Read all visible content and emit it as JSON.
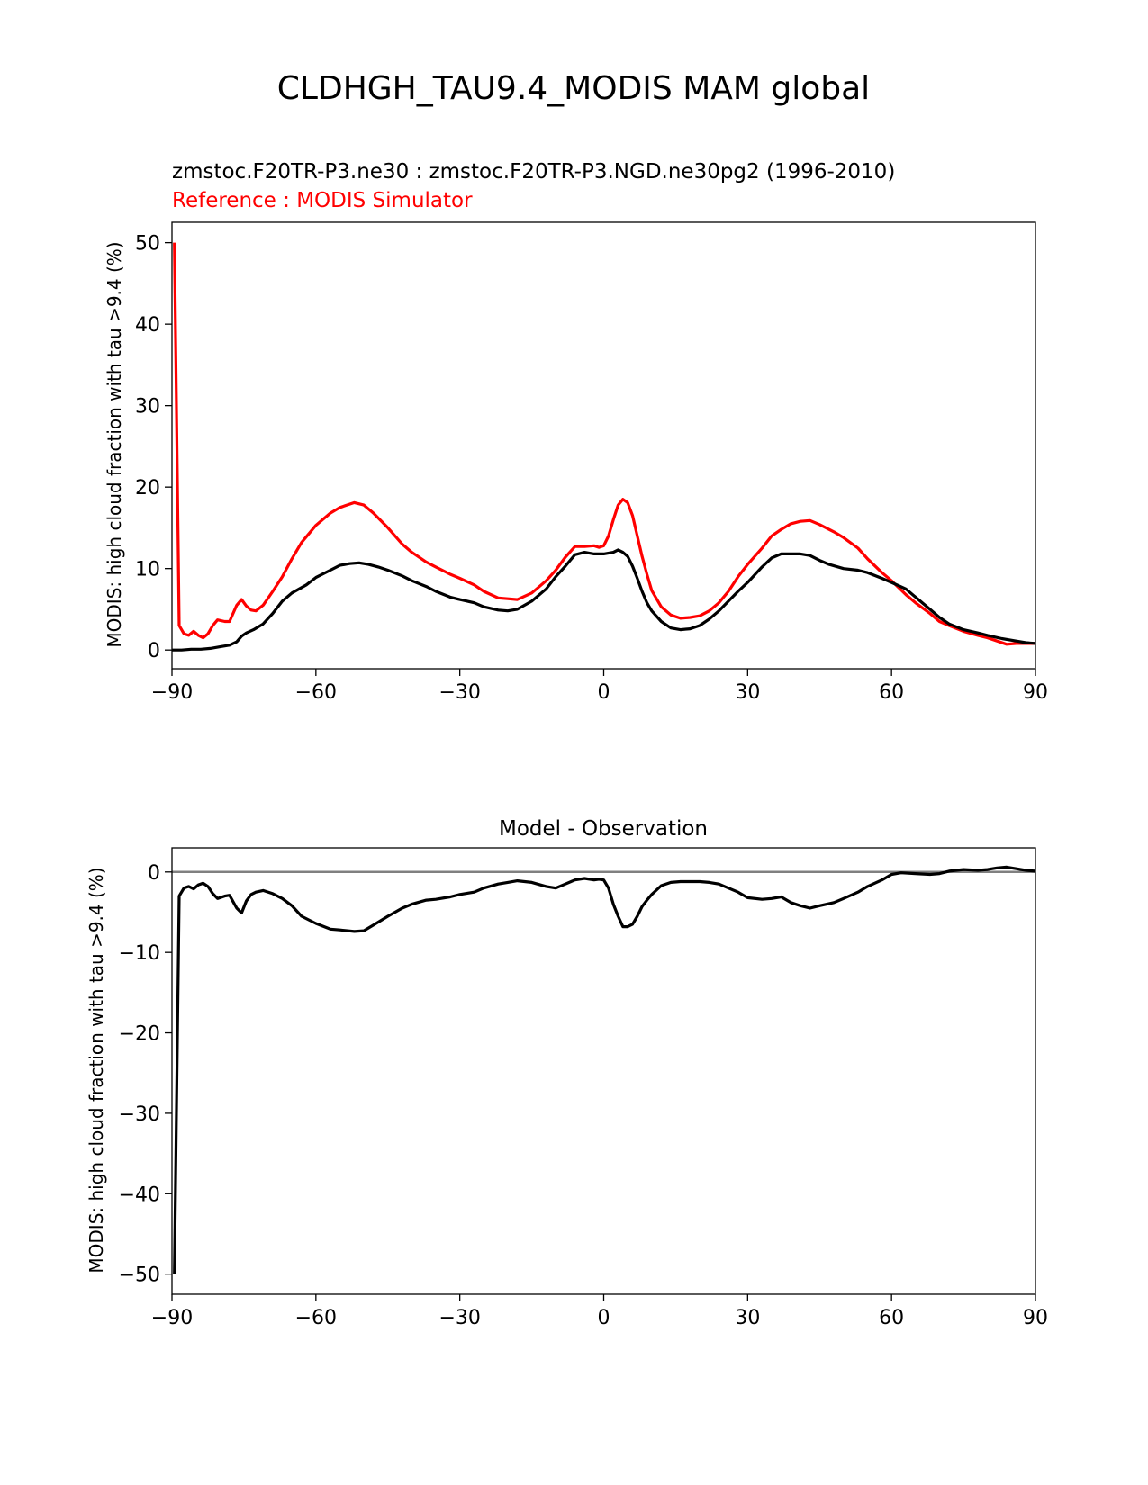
{
  "figure": {
    "title": "CLDHGH_TAU9.4_MODIS MAM global"
  },
  "chart_data": [
    {
      "type": "line",
      "title": "zmstoc.F20TR-P3.ne30 : zmstoc.F20TR-P3.NGD.ne30pg2 (1996-2010)",
      "subtitle": "Reference : MODIS Simulator",
      "subtitle_color": "#ff0000",
      "xlabel": "",
      "ylabel": "MODIS: high cloud fraction with tau >9.4 (%)",
      "xlim": [
        -90,
        90
      ],
      "ylim": [
        -2.3,
        52.5
      ],
      "xticks": [
        -90,
        -60,
        -30,
        0,
        30,
        60,
        90
      ],
      "xtick_labels": [
        "−90",
        "−60",
        "−30",
        "0",
        "30",
        "60",
        "90"
      ],
      "yticks": [
        0,
        10,
        20,
        30,
        40,
        50
      ],
      "ytick_labels": [
        "0",
        "10",
        "20",
        "30",
        "40",
        "50"
      ],
      "grid": false,
      "series": [
        {
          "color": "#ff0000",
          "x": [
            -89.5,
            -88.5,
            -87.5,
            -86.5,
            -85.5,
            -84.5,
            -83.5,
            -82.5,
            -81.5,
            -80.5,
            -79,
            -78,
            -76.5,
            -75.5,
            -74.5,
            -73.5,
            -72.5,
            -71,
            -69,
            -67,
            -65,
            -63,
            -60,
            -57,
            -55,
            -52,
            -50,
            -48,
            -45,
            -42,
            -40,
            -37,
            -35,
            -32,
            -30,
            -27,
            -25,
            -22,
            -20,
            -18,
            -15,
            -12,
            -10,
            -8,
            -6,
            -4,
            -2,
            -1,
            0,
            1,
            2,
            3,
            4,
            5,
            6,
            7,
            8,
            9,
            10,
            12,
            14,
            16,
            18,
            20,
            22,
            24,
            26,
            28,
            30,
            33,
            35,
            37,
            39,
            41,
            43,
            45,
            48,
            50,
            53,
            55,
            58,
            60,
            63,
            65,
            68,
            70,
            72,
            75,
            78,
            80,
            82,
            84,
            86,
            88,
            90
          ],
          "y": [
            50,
            3,
            2,
            1.8,
            2.3,
            1.8,
            1.5,
            2,
            3,
            3.7,
            3.5,
            3.5,
            5.5,
            6.2,
            5.4,
            4.9,
            4.8,
            5.5,
            7.2,
            9,
            11.2,
            13.2,
            15.3,
            16.8,
            17.5,
            18.1,
            17.8,
            16.8,
            15,
            13,
            12,
            10.8,
            10.2,
            9.3,
            8.8,
            8,
            7.2,
            6.4,
            6.3,
            6.2,
            7,
            8.5,
            9.8,
            11.4,
            12.7,
            12.7,
            12.8,
            12.6,
            12.8,
            14,
            16,
            17.8,
            18.5,
            18.1,
            16.5,
            14,
            11.5,
            9.3,
            7.3,
            5.3,
            4.3,
            3.9,
            4,
            4.2,
            4.8,
            5.8,
            7.2,
            9,
            10.5,
            12.5,
            14,
            14.8,
            15.5,
            15.8,
            15.9,
            15.4,
            14.5,
            13.8,
            12.5,
            11.2,
            9.5,
            8.5,
            6.8,
            5.8,
            4.5,
            3.5,
            3,
            2.3,
            1.8,
            1.5,
            1.1,
            0.7,
            0.8,
            0.8,
            0.8
          ]
        },
        {
          "color": "#000000",
          "x": [
            -90,
            -88,
            -86,
            -84,
            -82,
            -80,
            -78,
            -76.5,
            -75.5,
            -74.5,
            -73,
            -71,
            -69,
            -67,
            -65,
            -62,
            -60,
            -57,
            -55,
            -53,
            -51,
            -49,
            -47,
            -45,
            -42,
            -40,
            -37,
            -35,
            -32,
            -30,
            -27,
            -25,
            -22,
            -20,
            -18,
            -15,
            -12,
            -10,
            -8,
            -6,
            -4,
            -2,
            0,
            2,
            3,
            4,
            5,
            6,
            7,
            8,
            9,
            10,
            12,
            14,
            16,
            18,
            20,
            22,
            24,
            26,
            28,
            30,
            33,
            35,
            37,
            39,
            41,
            43,
            45,
            47,
            50,
            53,
            55,
            58,
            60,
            63,
            65,
            68,
            70,
            72,
            75,
            78,
            80,
            83,
            86,
            88,
            90
          ],
          "y": [
            0,
            0,
            0.1,
            0.1,
            0.2,
            0.4,
            0.6,
            1,
            1.7,
            2.1,
            2.5,
            3.2,
            4.5,
            6,
            7,
            8,
            8.9,
            9.8,
            10.4,
            10.6,
            10.7,
            10.5,
            10.2,
            9.8,
            9.1,
            8.5,
            7.8,
            7.2,
            6.5,
            6.2,
            5.8,
            5.3,
            4.9,
            4.8,
            5,
            6,
            7.5,
            9,
            10.3,
            11.7,
            12,
            11.8,
            11.8,
            12,
            12.3,
            12,
            11.5,
            10.3,
            8.8,
            7.2,
            5.8,
            4.8,
            3.5,
            2.7,
            2.5,
            2.6,
            3,
            3.8,
            4.8,
            6,
            7.2,
            8.3,
            10.2,
            11.3,
            11.8,
            11.8,
            11.8,
            11.6,
            11,
            10.5,
            10,
            9.8,
            9.5,
            8.8,
            8.3,
            7.5,
            6.5,
            5,
            4,
            3.2,
            2.5,
            2.1,
            1.8,
            1.4,
            1.1,
            0.9,
            0.8
          ]
        }
      ]
    },
    {
      "type": "line",
      "title": "Model - Observation",
      "xlabel": "",
      "ylabel": "MODIS: high cloud fraction with tau >9.4 (%)",
      "xlim": [
        -90,
        90
      ],
      "ylim": [
        -52.5,
        3
      ],
      "xticks": [
        -90,
        -60,
        -30,
        0,
        30,
        60,
        90
      ],
      "xtick_labels": [
        "−90",
        "−60",
        "−30",
        "0",
        "30",
        "60",
        "90"
      ],
      "yticks": [
        0,
        -10,
        -20,
        -30,
        -40,
        -50
      ],
      "ytick_labels": [
        "0",
        "−10",
        "−20",
        "−30",
        "−40",
        "−50"
      ],
      "grid": false,
      "zero_line_color": "#808080",
      "series": [
        {
          "color": "#000000",
          "x": [
            -89.5,
            -88.5,
            -87.5,
            -86.5,
            -85.5,
            -84.5,
            -83.5,
            -82.5,
            -81.5,
            -80.5,
            -79,
            -78,
            -76.5,
            -75.5,
            -74.5,
            -73.5,
            -72.5,
            -71,
            -69,
            -67,
            -65,
            -63,
            -60,
            -57,
            -55,
            -52,
            -50,
            -48,
            -45,
            -42,
            -40,
            -37,
            -35,
            -32,
            -30,
            -27,
            -25,
            -22,
            -20,
            -18,
            -15,
            -12,
            -10,
            -8,
            -6,
            -4,
            -2,
            -1,
            0,
            1,
            2,
            3,
            4,
            5,
            6,
            7,
            8,
            9,
            10,
            12,
            14,
            16,
            18,
            20,
            22,
            24,
            26,
            28,
            30,
            33,
            35,
            37,
            39,
            41,
            43,
            45,
            48,
            50,
            53,
            55,
            58,
            60,
            62,
            65,
            68,
            70,
            72,
            75,
            78,
            80,
            82,
            84,
            86,
            88,
            90
          ],
          "y": [
            -50,
            -3,
            -2,
            -1.8,
            -2.1,
            -1.6,
            -1.4,
            -1.8,
            -2.7,
            -3.3,
            -3,
            -2.9,
            -4.5,
            -5.1,
            -3.6,
            -2.8,
            -2.5,
            -2.3,
            -2.7,
            -3.3,
            -4.2,
            -5.5,
            -6.4,
            -7.1,
            -7.2,
            -7.4,
            -7.3,
            -6.6,
            -5.5,
            -4.5,
            -4,
            -3.5,
            -3.4,
            -3.1,
            -2.8,
            -2.5,
            -2,
            -1.5,
            -1.3,
            -1.1,
            -1.3,
            -1.8,
            -2,
            -1.5,
            -1,
            -0.8,
            -1,
            -0.9,
            -1,
            -2,
            -4,
            -5.5,
            -6.8,
            -6.8,
            -6.5,
            -5.5,
            -4.3,
            -3.5,
            -2.8,
            -1.7,
            -1.3,
            -1.2,
            -1.2,
            -1.2,
            -1.3,
            -1.5,
            -2,
            -2.5,
            -3.2,
            -3.4,
            -3.3,
            -3.1,
            -3.8,
            -4.2,
            -4.5,
            -4.2,
            -3.8,
            -3.3,
            -2.5,
            -1.8,
            -1,
            -0.3,
            -0.1,
            -0.2,
            -0.3,
            -0.2,
            0.1,
            0.3,
            0.2,
            0.3,
            0.5,
            0.6,
            0.4,
            0.2,
            0.1
          ]
        }
      ]
    }
  ]
}
